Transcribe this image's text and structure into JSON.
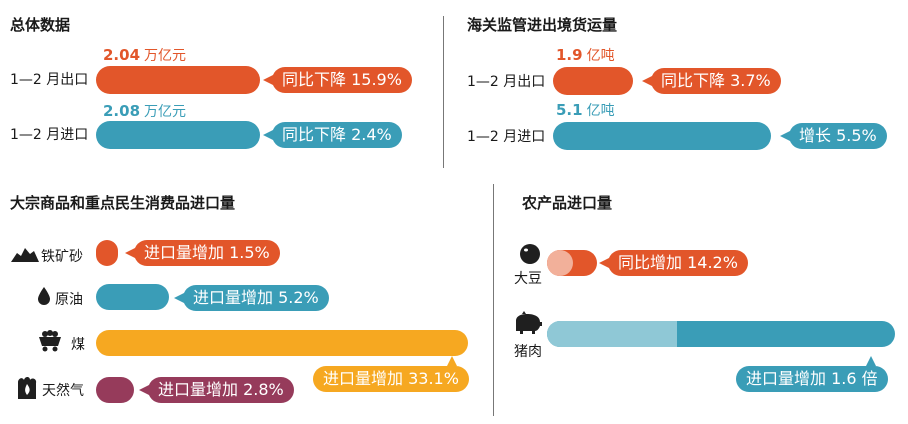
{
  "colors": {
    "orange": "#e2562a",
    "blue": "#3a9db7",
    "yellow": "#f6a821",
    "purple": "#963b5b",
    "lightblue": "#8fc8d6",
    "pink": "#f2b09a"
  },
  "icons": [
    "iron-ore-icon",
    "crude-oil-drop-icon",
    "coal-cart-icon",
    "natural-gas-icon",
    "soybean-icon",
    "pig-icon"
  ],
  "chart_data": [
    {
      "type": "bar",
      "title": "总体数据",
      "categories": [
        "1—2 月出口",
        "1—2 月进口"
      ],
      "values": [
        2.04,
        2.08
      ],
      "value_labels": [
        "2.04",
        "2.08"
      ],
      "unit": "万亿元",
      "annotations": [
        "同比下降 15.9%",
        "同比下降 2.4%"
      ]
    },
    {
      "type": "bar",
      "title": "海关监管进出境货运量",
      "categories": [
        "1—2 月出口",
        "1—2 月进口"
      ],
      "values": [
        1.9,
        5.1
      ],
      "value_labels": [
        "1.9",
        "5.1"
      ],
      "unit": "亿吨",
      "annotations": [
        "同比下降 3.7%",
        "增长 5.5%"
      ]
    },
    {
      "type": "bar",
      "title": "大宗商品和重点民生消费品进口量",
      "categories": [
        "铁矿砂",
        "原油",
        "煤",
        "天然气"
      ],
      "values": [
        1.5,
        5.2,
        33.1,
        2.8
      ],
      "annotations": [
        "进口量增加 1.5%",
        "进口量增加 5.2%",
        "进口量增加 33.1%",
        "进口量增加 2.8%"
      ]
    },
    {
      "type": "bar",
      "title": "农产品进口量",
      "categories": [
        "大豆",
        "猪肉"
      ],
      "values": [
        14.2,
        160
      ],
      "annotations": [
        "同比增加 14.2%",
        "进口量增加 1.6 倍"
      ]
    }
  ]
}
